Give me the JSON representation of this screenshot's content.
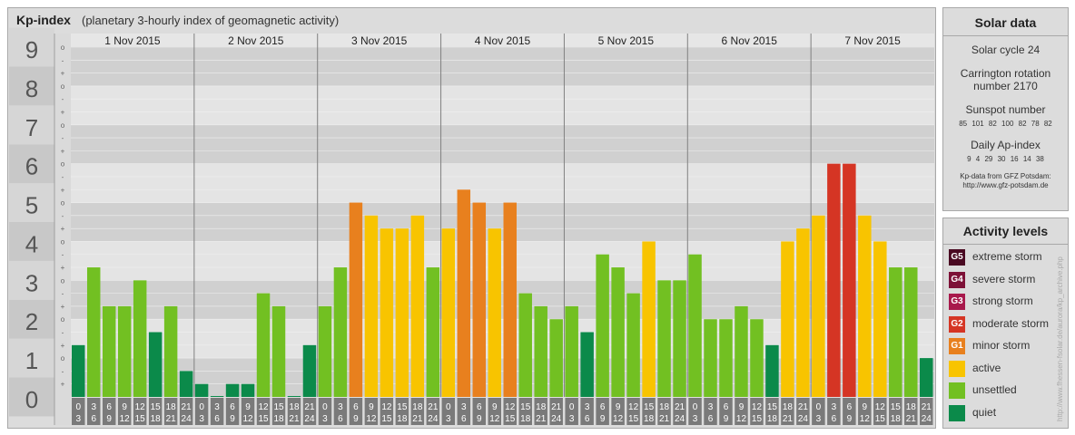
{
  "header": {
    "title": "Kp-index",
    "subtitle": "(planetary 3-hourly index of geomagnetic activity)"
  },
  "colors": {
    "quiet": "#0b8a4a",
    "unsettled": "#72c022",
    "active": "#f8c400",
    "minor": "#e8801e",
    "moderate": "#d53524",
    "strong": "#a8194c",
    "severe": "#7d1137",
    "extreme": "#4a0a22"
  },
  "chart_data": {
    "type": "bar",
    "ylim": [
      0,
      9
    ],
    "y_ticks": [
      "0",
      "1",
      "2",
      "3",
      "4",
      "5",
      "6",
      "7",
      "8",
      "9"
    ],
    "sub_ticks": [
      "+",
      "o",
      "-"
    ],
    "days": [
      "1 Nov 2015",
      "2 Nov 2015",
      "3 Nov 2015",
      "4 Nov 2015",
      "5 Nov 2015",
      "6 Nov 2015",
      "7 Nov 2015"
    ],
    "slot_top": [
      "0",
      "3",
      "6",
      "9",
      "12",
      "15",
      "18",
      "21"
    ],
    "slot_bottom": [
      "3",
      "6",
      "9",
      "12",
      "15",
      "18",
      "21",
      "24"
    ],
    "values": [
      1.333,
      3.333,
      2.333,
      2.333,
      3,
      1.667,
      2.333,
      0.667,
      0.333,
      0,
      0.333,
      0.333,
      2.667,
      2.333,
      0,
      1.333,
      2.333,
      3.333,
      5,
      4.667,
      4.333,
      4.333,
      4.667,
      3.333,
      4.333,
      5.333,
      5,
      4.333,
      5,
      2.667,
      2.333,
      2,
      2.333,
      1.667,
      3.667,
      3.333,
      2.667,
      4,
      3,
      3,
      3.667,
      2,
      2,
      2.333,
      2,
      1.333,
      4,
      4.333,
      4.667,
      6,
      6,
      4.667,
      4,
      3.333,
      3.333,
      1
    ]
  },
  "solar": {
    "heading": "Solar data",
    "cycle": "Solar cycle 24",
    "carrington_1": "Carrington rotation",
    "carrington_2": "number 2170",
    "sunspot_label": "Sunspot number",
    "sunspot_values": "85 101 82 100 82 78 82",
    "ap_label": "Daily Ap-index",
    "ap_values": "9 4 29 30 16 14 38",
    "credit_1": "Kp-data from GFZ Potsdam:",
    "credit_2": "http://www.gfz-potsdam.de"
  },
  "legend": {
    "heading": "Activity levels",
    "items": [
      {
        "code": "G5",
        "label": "extreme storm",
        "color": "#4a0a22"
      },
      {
        "code": "G4",
        "label": "severe storm",
        "color": "#7d1137"
      },
      {
        "code": "G3",
        "label": "strong storm",
        "color": "#a8194c"
      },
      {
        "code": "G2",
        "label": "moderate storm",
        "color": "#d53524"
      },
      {
        "code": "G1",
        "label": "minor storm",
        "color": "#e8801e"
      },
      {
        "code": "",
        "label": "active",
        "color": "#f8c400"
      },
      {
        "code": "",
        "label": "unsettled",
        "color": "#72c022"
      },
      {
        "code": "",
        "label": "quiet",
        "color": "#0b8a4a"
      }
    ]
  },
  "footer": {
    "url": "http://www.fhessen-fsolar.de/aurora/kp_archive.php"
  }
}
